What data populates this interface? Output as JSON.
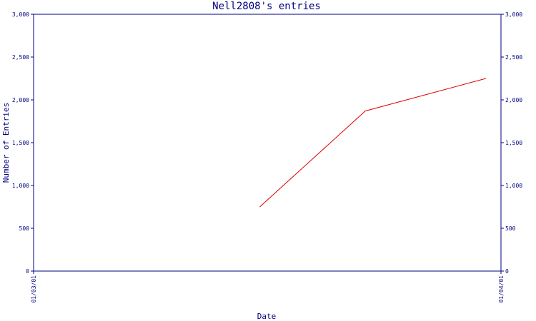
{
  "chart_data": {
    "type": "line",
    "title": "Nell2808's entries",
    "xlabel": "Date",
    "ylabel": "Number of Entries",
    "x_tick_labels": [
      "01/03/01",
      "01/04/01"
    ],
    "y_ticks": [
      0,
      500,
      1000,
      1500,
      2000,
      2500,
      3000
    ],
    "y_tick_labels": [
      "0",
      "500",
      "1,000",
      "1,500",
      "2,000",
      "2,500",
      "3,000"
    ],
    "ylim": [
      0,
      3000
    ],
    "xlim": [
      "2001-03-01",
      "2001-04-01"
    ],
    "grid": false,
    "series": [
      {
        "color": "#e00000",
        "points": [
          {
            "x": "2001-03-16",
            "y": 750
          },
          {
            "x": "2001-03-23",
            "y": 1870
          },
          {
            "x": "2001-03-31",
            "y": 2250
          }
        ]
      }
    ],
    "axis_color": "#000080"
  }
}
